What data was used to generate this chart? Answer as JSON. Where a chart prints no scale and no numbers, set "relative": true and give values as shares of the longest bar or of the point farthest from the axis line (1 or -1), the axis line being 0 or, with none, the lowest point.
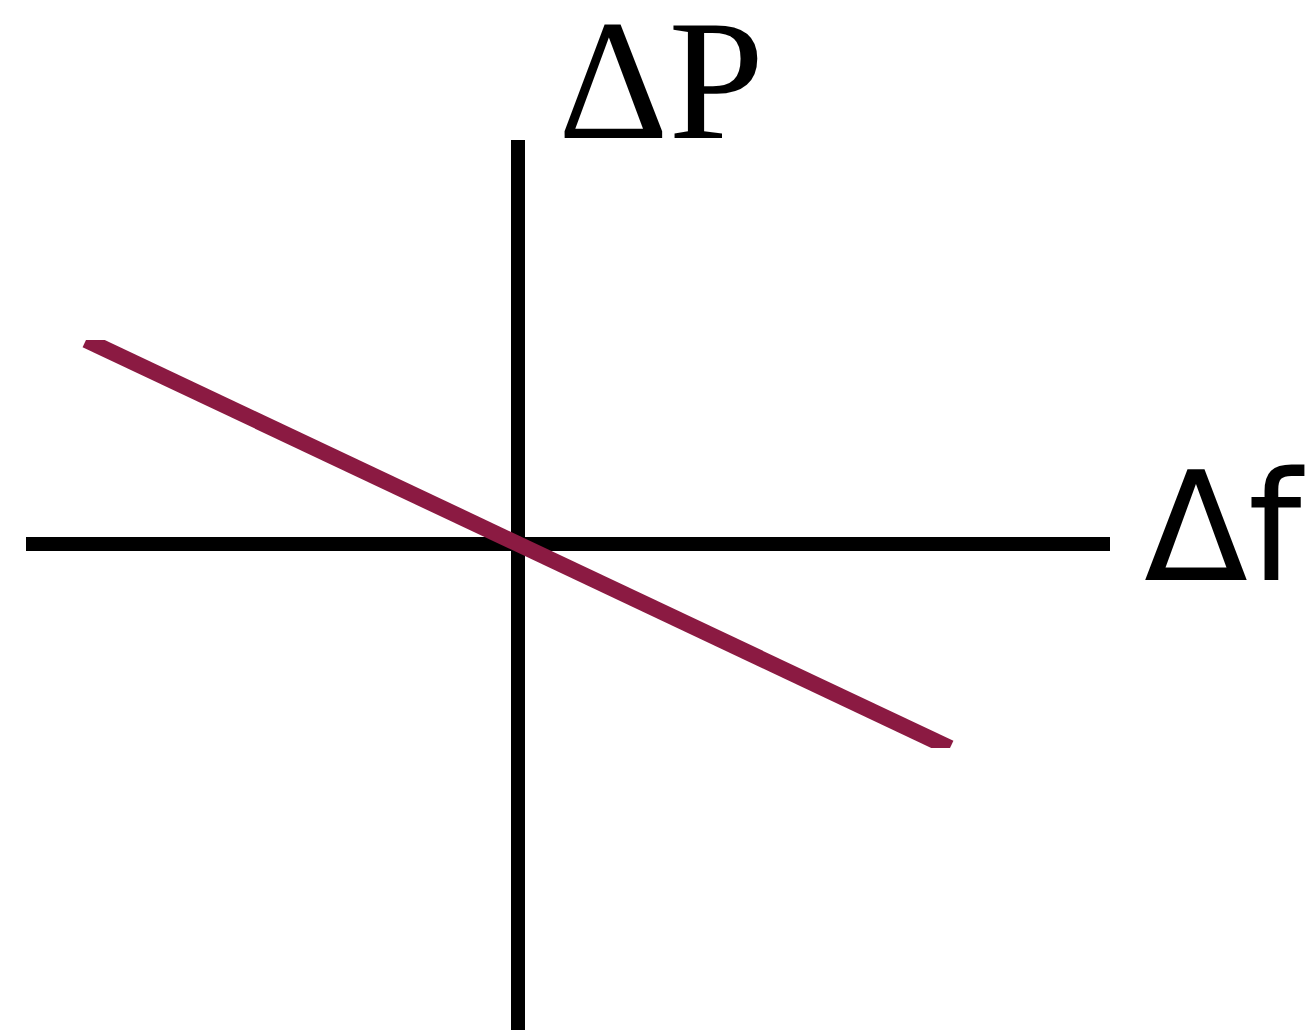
{
  "chart_data": {
    "type": "line",
    "xlabel": "Δf",
    "ylabel": "ΔP",
    "categories": [
      null,
      null
    ],
    "series": [
      {
        "color": "#8b1a42",
        "values": [
          1,
          -1
        ]
      }
    ],
    "relative": true,
    "marker": "none",
    "line_style": "solid"
  }
}
